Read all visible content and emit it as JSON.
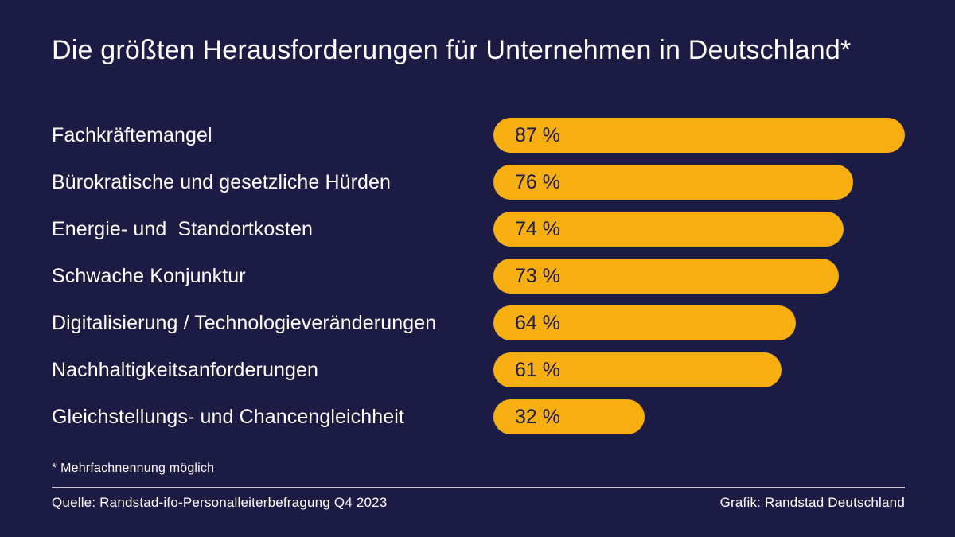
{
  "title": "Die größten Herausforderungen für Unternehmen in Deutschland*",
  "footnote": "* Mehrfachnennung möglich",
  "source": "Quelle: Randstad-ifo-Personalleiterbefragung Q4 2023",
  "credit": "Grafik: Randstad Deutschland",
  "colors": {
    "background": "#1B1B43",
    "bar": "#F7AE11",
    "text": "#FFFFFF",
    "bar_text": "#1B1B43",
    "divider": "#C6C6D2"
  },
  "chart_data": {
    "type": "bar",
    "orientation": "horizontal",
    "title": "Die größten Herausforderungen für Unternehmen in Deutschland*",
    "categories": [
      "Fachkräftemangel",
      "Bürokratische und gesetzliche Hürden",
      "Energie- und  Standortkosten",
      "Schwache Konjunktur",
      "Digitalisierung / Technologieveränderungen",
      "Nachhaltigkeitsanforderungen",
      "Gleichstellungs- und Chancengleichheit"
    ],
    "values": [
      87,
      76,
      74,
      73,
      64,
      61,
      32
    ],
    "value_labels": [
      "87 %",
      "76 %",
      "74 %",
      "73 %",
      "64 %",
      "61 %",
      "32 %"
    ],
    "unit": "%",
    "xlabel": "",
    "ylabel": "",
    "xlim": [
      0,
      87
    ],
    "grid": false,
    "legend": false,
    "bar_style": "pill",
    "value_label_position": "inside-left"
  }
}
